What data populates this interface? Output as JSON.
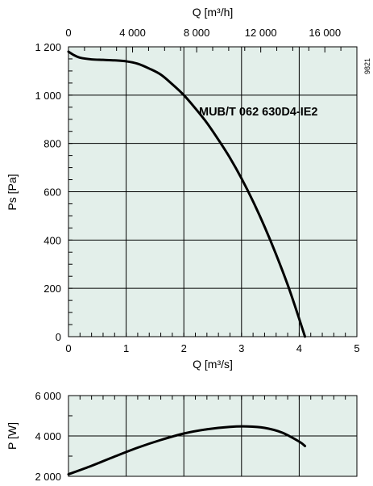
{
  "figure": {
    "reference_code": "9821"
  },
  "chart_data": [
    {
      "type": "line",
      "x_top_axis": {
        "label": "Q [m³/h]",
        "ticks": [
          0,
          4000,
          8000,
          12000,
          16000
        ],
        "tick_labels": [
          "0",
          "4 000",
          "8 000",
          "12 000",
          "16 000"
        ],
        "range": [
          0,
          18000
        ]
      },
      "x_bottom_axis": {
        "label": "Q [m³/s]",
        "ticks": [
          0,
          1,
          2,
          3,
          4,
          5
        ],
        "tick_labels": [
          "0",
          "1",
          "2",
          "3",
          "4",
          "5"
        ],
        "range": [
          0,
          5
        ]
      },
      "y_axis": {
        "label": "Ps [Pa]",
        "ticks": [
          0,
          200,
          400,
          600,
          800,
          1000,
          1200
        ],
        "tick_labels": [
          "0",
          "200",
          "400",
          "600",
          "800",
          "1 000",
          "1 200"
        ],
        "range": [
          0,
          1200
        ]
      },
      "grid": true,
      "series": [
        {
          "name": "MUB/T 062 630D4-IE2",
          "x": [
            0,
            0.1,
            0.2,
            0.4,
            0.6,
            0.8,
            1.0,
            1.2,
            1.4,
            1.6,
            1.8,
            2.0,
            2.2,
            2.4,
            2.6,
            2.8,
            3.0,
            3.2,
            3.4,
            3.6,
            3.8,
            3.95,
            4.1
          ],
          "y": [
            1180,
            1165,
            1155,
            1148,
            1146,
            1144,
            1140,
            1130,
            1110,
            1085,
            1045,
            1000,
            945,
            885,
            815,
            740,
            655,
            560,
            455,
            340,
            215,
            110,
            0
          ]
        }
      ]
    },
    {
      "type": "line",
      "x_axis": {
        "range": [
          0,
          5
        ],
        "ticks": [
          0,
          1,
          2,
          3,
          4,
          5
        ]
      },
      "y_axis": {
        "label": "P [W]",
        "ticks": [
          2000,
          4000,
          6000
        ],
        "tick_labels": [
          "2 000",
          "4 000",
          "6 000"
        ],
        "range": [
          2000,
          6000
        ]
      },
      "grid": true,
      "series": [
        {
          "x": [
            0,
            0.4,
            0.8,
            1.2,
            1.6,
            2.0,
            2.4,
            2.8,
            3.1,
            3.4,
            3.7,
            4.0,
            4.1
          ],
          "y": [
            2100,
            2520,
            2980,
            3420,
            3800,
            4120,
            4330,
            4450,
            4470,
            4400,
            4170,
            3720,
            3500
          ]
        }
      ]
    }
  ]
}
